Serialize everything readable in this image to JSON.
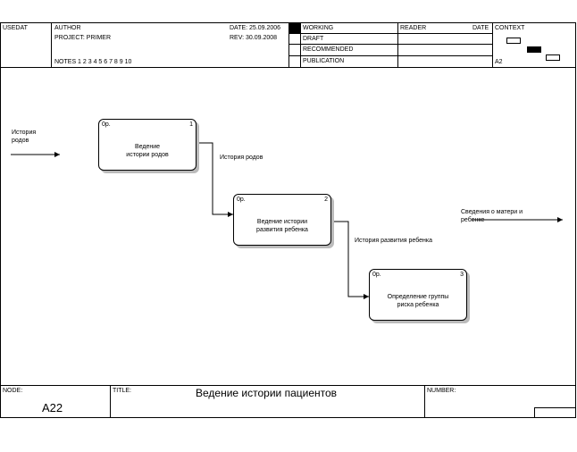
{
  "header": {
    "usedat": "USEDAT",
    "author": "AUTHOR",
    "project": "PROJECT:  PRIMER",
    "notes": "NOTES  1  2  3  4  5  6  7  8  9  10",
    "date": "DATE:  25.09.2006",
    "rev": "REV:    30.09.2008",
    "status": [
      "WORKING",
      "DRAFT",
      "RECOMMENDED",
      "PUBLICATION"
    ],
    "reader": "READER",
    "reader_date": "DATE",
    "context": "CONTEXT",
    "context_node": "A2"
  },
  "diagram": {
    "activities": [
      {
        "number": "1",
        "op": "0p.",
        "label": "Ведение\nистории родов"
      },
      {
        "number": "2",
        "op": "0p.",
        "label": "Ведение истории\nразвития ребенка"
      },
      {
        "number": "3",
        "op": "0p.",
        "label": "Определение группы\nриска ребенка"
      }
    ],
    "arrows": {
      "input": "История\nродов",
      "a12": "История родов",
      "a23": "История развития ребенка",
      "output": "Сведения о матери и\nребенке"
    }
  },
  "footer": {
    "node_label": "NODE:",
    "node": "A22",
    "title_label": "TITLE:",
    "title": "Ведение истории  пациентов",
    "number_label": "NUMBER:"
  }
}
